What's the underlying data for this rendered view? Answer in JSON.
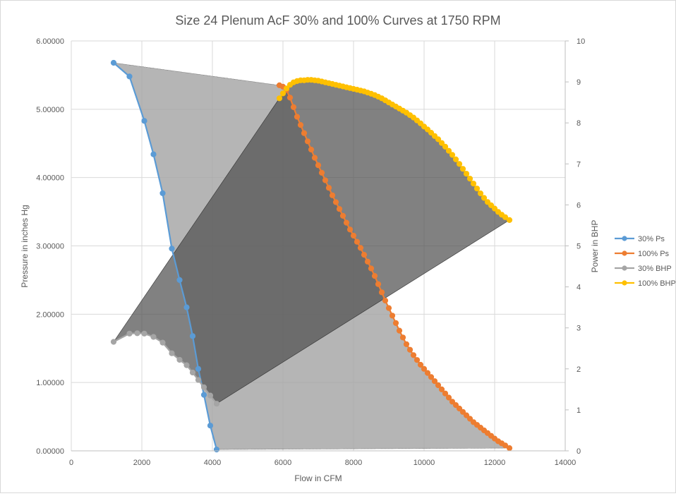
{
  "chart_data": {
    "type": "line",
    "title": "Size 24 Plenum AcF 30% and 100% Curves at 1750 RPM",
    "xlabel": "Flow in CFM",
    "ylabel": "Pressure in inches Hg",
    "y2label": "Power in BHP",
    "xlim": [
      0,
      14000
    ],
    "ylim": [
      0,
      6
    ],
    "y2lim": [
      0,
      10
    ],
    "x_ticks": [
      "0",
      "2000",
      "4000",
      "6000",
      "8000",
      "10000",
      "12000",
      "14000"
    ],
    "y_ticks": [
      "0.00000",
      "1.00000",
      "2.00000",
      "3.00000",
      "4.00000",
      "5.00000",
      "6.00000"
    ],
    "y2_ticks": [
      "0",
      "1",
      "2",
      "3",
      "4",
      "5",
      "6",
      "7",
      "8",
      "9",
      "10"
    ],
    "grid": true,
    "legend_position": "right",
    "series": [
      {
        "name": "30% Ps",
        "axis": "left",
        "color": "#5b9bd5",
        "x": [
          1200,
          1650,
          2070,
          2330,
          2590,
          2850,
          3070,
          3270,
          3440,
          3600,
          3760,
          3940,
          4120
        ],
        "y": [
          5.68,
          5.48,
          4.83,
          4.34,
          3.77,
          2.96,
          2.5,
          2.1,
          1.68,
          1.2,
          0.82,
          0.37,
          0.02
        ]
      },
      {
        "name": "100% Ps",
        "axis": "left",
        "color": "#ed7d31",
        "x": [
          5900,
          6000,
          6100,
          6200,
          6300,
          6400,
          6500,
          6600,
          6700,
          6800,
          6900,
          7000,
          7100,
          7200,
          7300,
          7400,
          7500,
          7600,
          7700,
          7800,
          7900,
          8000,
          8100,
          8200,
          8300,
          8400,
          8500,
          8600,
          8700,
          8800,
          8900,
          9000,
          9100,
          9200,
          9300,
          9400,
          9500,
          9600,
          9700,
          9800,
          9900,
          10000,
          10100,
          10200,
          10300,
          10400,
          10500,
          10600,
          10700,
          10800,
          10900,
          11000,
          11100,
          11200,
          11300,
          11400,
          11500,
          11600,
          11700,
          11800,
          11900,
          12000,
          12100,
          12200,
          12300,
          12420
        ],
        "y": [
          5.35,
          5.33,
          5.28,
          5.17,
          5.03,
          4.89,
          4.77,
          4.65,
          4.53,
          4.41,
          4.29,
          4.18,
          4.07,
          3.96,
          3.85,
          3.74,
          3.64,
          3.54,
          3.44,
          3.34,
          3.24,
          3.15,
          3.06,
          2.97,
          2.87,
          2.77,
          2.67,
          2.56,
          2.44,
          2.32,
          2.2,
          2.09,
          1.98,
          1.87,
          1.76,
          1.66,
          1.56,
          1.48,
          1.4,
          1.33,
          1.26,
          1.2,
          1.14,
          1.08,
          1.02,
          0.96,
          0.9,
          0.84,
          0.78,
          0.72,
          0.67,
          0.62,
          0.57,
          0.52,
          0.47,
          0.42,
          0.38,
          0.34,
          0.3,
          0.26,
          0.22,
          0.18,
          0.14,
          0.11,
          0.08,
          0.04
        ]
      },
      {
        "name": "30% BHP",
        "axis": "right",
        "color": "#a5a5a5",
        "x": [
          1200,
          1650,
          1870,
          2070,
          2330,
          2590,
          2850,
          3070,
          3270,
          3440,
          3600,
          3760,
          3940,
          4120
        ],
        "y": [
          2.66,
          2.86,
          2.87,
          2.86,
          2.78,
          2.64,
          2.38,
          2.22,
          2.09,
          1.91,
          1.73,
          1.55,
          1.35,
          1.15
        ]
      },
      {
        "name": "100% BHP",
        "axis": "right",
        "color": "#ffc000",
        "x": [
          5900,
          6000,
          6100,
          6200,
          6300,
          6400,
          6500,
          6600,
          6700,
          6800,
          6900,
          7000,
          7100,
          7200,
          7300,
          7400,
          7500,
          7600,
          7700,
          7800,
          7900,
          8000,
          8100,
          8200,
          8300,
          8400,
          8500,
          8600,
          8700,
          8800,
          8900,
          9000,
          9100,
          9200,
          9300,
          9400,
          9500,
          9600,
          9700,
          9800,
          9900,
          10000,
          10100,
          10200,
          10300,
          10400,
          10500,
          10600,
          10700,
          10800,
          10900,
          11000,
          11100,
          11200,
          11300,
          11400,
          11500,
          11600,
          11700,
          11800,
          11900,
          12000,
          12100,
          12200,
          12300,
          12420
        ],
        "y": [
          8.6,
          8.72,
          8.84,
          8.93,
          8.99,
          9.02,
          9.04,
          9.04,
          9.05,
          9.05,
          9.04,
          9.03,
          9.01,
          8.99,
          8.97,
          8.95,
          8.93,
          8.91,
          8.89,
          8.87,
          8.85,
          8.83,
          8.81,
          8.79,
          8.77,
          8.74,
          8.71,
          8.68,
          8.64,
          8.6,
          8.55,
          8.5,
          8.45,
          8.4,
          8.35,
          8.3,
          8.25,
          8.19,
          8.13,
          8.06,
          7.99,
          7.91,
          7.84,
          7.76,
          7.68,
          7.6,
          7.51,
          7.42,
          7.32,
          7.22,
          7.11,
          7.0,
          6.88,
          6.76,
          6.64,
          6.52,
          6.4,
          6.28,
          6.17,
          6.07,
          5.99,
          5.91,
          5.83,
          5.76,
          5.7,
          5.63
        ]
      }
    ]
  }
}
